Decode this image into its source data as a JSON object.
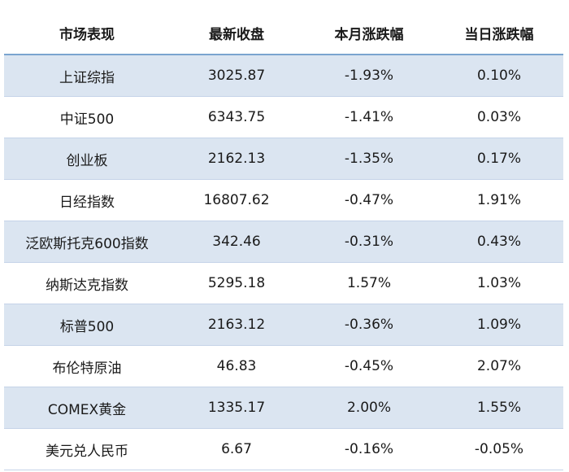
{
  "table": {
    "headers": [
      "市场表现",
      "最新收盘",
      "本月涨跌幅",
      "当日涨跌幅"
    ],
    "rows": [
      [
        "上证综指",
        "3025.87",
        "-1.93%",
        "0.10%"
      ],
      [
        "中证500",
        "6343.75",
        "-1.41%",
        "0.03%"
      ],
      [
        "创业板",
        "2162.13",
        "-1.35%",
        "0.17%"
      ],
      [
        "日经指数",
        "16807.62",
        "-0.47%",
        "1.91%"
      ],
      [
        "泛欧斯托克600指数",
        "342.46",
        "-0.31%",
        "0.43%"
      ],
      [
        "纳斯达克指数",
        "5295.18",
        "1.57%",
        "1.03%"
      ],
      [
        "标普500",
        "2163.12",
        "-0.36%",
        "1.09%"
      ],
      [
        "布伦特原油",
        "46.83",
        "-0.45%",
        "2.07%"
      ],
      [
        "COMEX黄金",
        "1335.17",
        "2.00%",
        "1.55%"
      ],
      [
        "美元兑人民币",
        "6.67",
        "-0.16%",
        "-0.05%"
      ]
    ]
  }
}
